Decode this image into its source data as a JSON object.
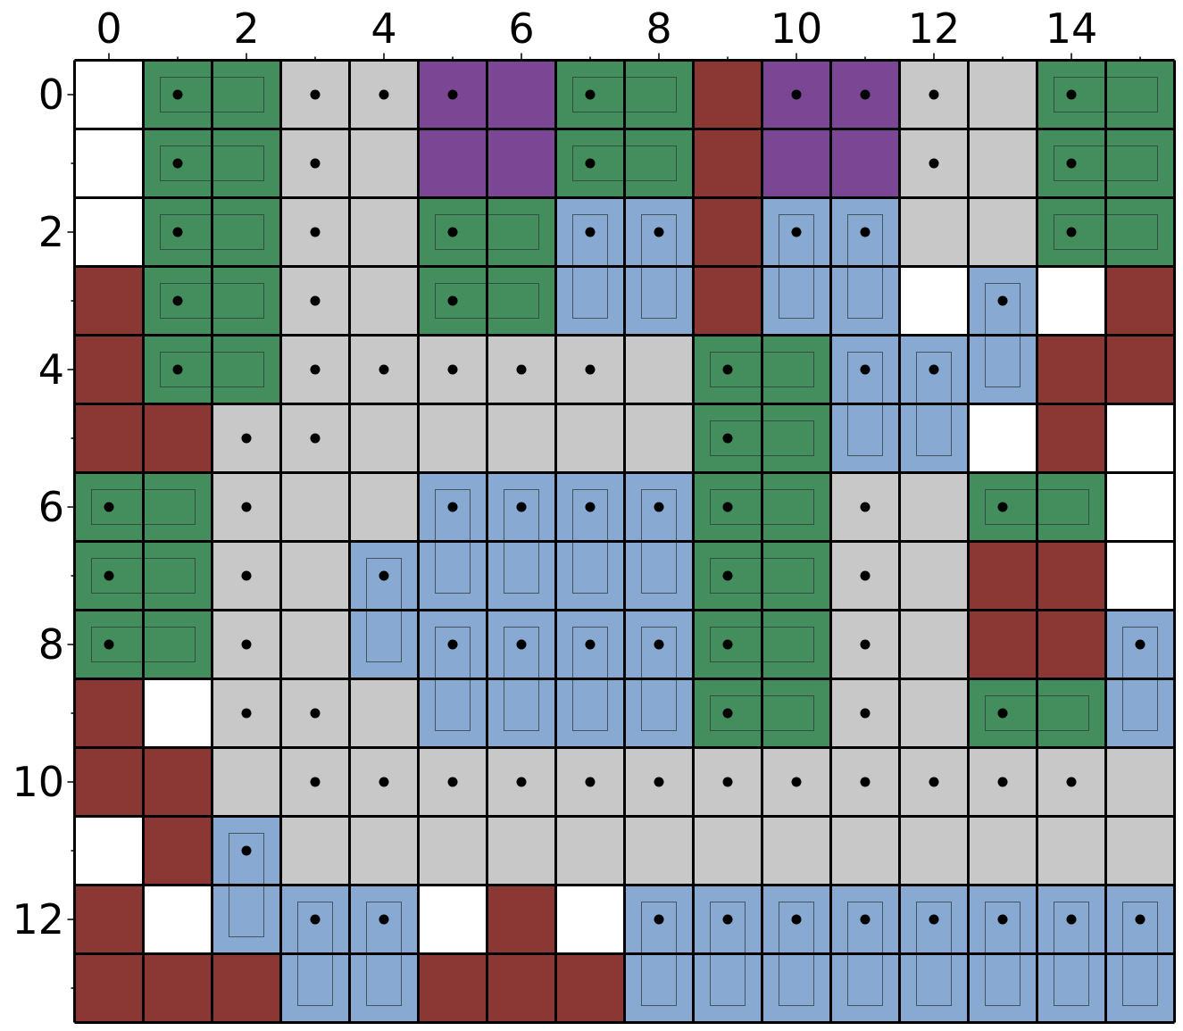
{
  "board": {
    "columns": 16,
    "rows": 14,
    "x_tick_labels": [
      "0",
      "2",
      "4",
      "6",
      "8",
      "10",
      "12",
      "14"
    ],
    "y_tick_labels": [
      "0",
      "2",
      "4",
      "6",
      "8",
      "10",
      "12"
    ],
    "cell_colors": {
      "W": "#ffffff",
      "G": "#c8c8c8",
      "R": "#8b3834",
      "P": "#7b4795",
      "N": "#448e5e",
      "B": "#87a9d2"
    },
    "cell_types": {
      "W": "empty",
      "G": "floor",
      "R": "wall",
      "P": "purple-block",
      "N": "green-block",
      "B": "blue-block"
    },
    "grid": [
      "WNNGGPPNNRPPGGNN",
      "WNNGGPPNNRPPGGNN",
      "WNNGGNNBBRBBGGNN",
      "RNNGGNNBBRBBWBWR",
      "RNNGGGGGGNNBBBRR",
      "RRGGGGGGGNNBBWRW",
      "NNGGGBBBBNNGGNNW",
      "NNGGBBBBBNNGGRRW",
      "NNGGBBBBBNNGGRRB",
      "RWGGGBBBBNNGGNNB",
      "RRGGGGGGGGGGGGGG",
      "WRBGGGGGGGGGGGGG",
      "RWBBBWRWBBBBBBBB",
      "RRRBBRRRBBBBBBBB"
    ],
    "pieces": [
      {
        "orientation": "horizontal",
        "color": "green",
        "cells": [
          [
            0,
            1
          ],
          [
            0,
            2
          ]
        ]
      },
      {
        "orientation": "horizontal",
        "color": "green",
        "cells": [
          [
            1,
            1
          ],
          [
            1,
            2
          ]
        ]
      },
      {
        "orientation": "horizontal",
        "color": "green",
        "cells": [
          [
            2,
            1
          ],
          [
            2,
            2
          ]
        ]
      },
      {
        "orientation": "horizontal",
        "color": "green",
        "cells": [
          [
            3,
            1
          ],
          [
            3,
            2
          ]
        ]
      },
      {
        "orientation": "horizontal",
        "color": "green",
        "cells": [
          [
            4,
            1
          ],
          [
            4,
            2
          ]
        ]
      },
      {
        "orientation": "horizontal",
        "color": "green",
        "cells": [
          [
            0,
            7
          ],
          [
            0,
            8
          ]
        ]
      },
      {
        "orientation": "horizontal",
        "color": "green",
        "cells": [
          [
            1,
            7
          ],
          [
            1,
            8
          ]
        ]
      },
      {
        "orientation": "horizontal",
        "color": "green",
        "cells": [
          [
            0,
            14
          ],
          [
            0,
            15
          ]
        ]
      },
      {
        "orientation": "horizontal",
        "color": "green",
        "cells": [
          [
            1,
            14
          ],
          [
            1,
            15
          ]
        ]
      },
      {
        "orientation": "horizontal",
        "color": "green",
        "cells": [
          [
            2,
            14
          ],
          [
            2,
            15
          ]
        ]
      },
      {
        "orientation": "horizontal",
        "color": "green",
        "cells": [
          [
            2,
            5
          ],
          [
            2,
            6
          ]
        ]
      },
      {
        "orientation": "horizontal",
        "color": "green",
        "cells": [
          [
            3,
            5
          ],
          [
            3,
            6
          ]
        ]
      },
      {
        "orientation": "horizontal",
        "color": "green",
        "cells": [
          [
            4,
            9
          ],
          [
            4,
            10
          ]
        ]
      },
      {
        "orientation": "horizontal",
        "color": "green",
        "cells": [
          [
            5,
            9
          ],
          [
            5,
            10
          ]
        ]
      },
      {
        "orientation": "horizontal",
        "color": "green",
        "cells": [
          [
            6,
            9
          ],
          [
            6,
            10
          ]
        ]
      },
      {
        "orientation": "horizontal",
        "color": "green",
        "cells": [
          [
            7,
            9
          ],
          [
            7,
            10
          ]
        ]
      },
      {
        "orientation": "horizontal",
        "color": "green",
        "cells": [
          [
            8,
            9
          ],
          [
            8,
            10
          ]
        ]
      },
      {
        "orientation": "horizontal",
        "color": "green",
        "cells": [
          [
            9,
            9
          ],
          [
            9,
            10
          ]
        ]
      },
      {
        "orientation": "horizontal",
        "color": "green",
        "cells": [
          [
            6,
            0
          ],
          [
            6,
            1
          ]
        ]
      },
      {
        "orientation": "horizontal",
        "color": "green",
        "cells": [
          [
            7,
            0
          ],
          [
            7,
            1
          ]
        ]
      },
      {
        "orientation": "horizontal",
        "color": "green",
        "cells": [
          [
            8,
            0
          ],
          [
            8,
            1
          ]
        ]
      },
      {
        "orientation": "horizontal",
        "color": "green",
        "cells": [
          [
            6,
            13
          ],
          [
            6,
            14
          ]
        ]
      },
      {
        "orientation": "horizontal",
        "color": "green",
        "cells": [
          [
            9,
            13
          ],
          [
            9,
            14
          ]
        ]
      },
      {
        "orientation": "vertical",
        "color": "blue",
        "cells": [
          [
            2,
            7
          ],
          [
            3,
            7
          ]
        ]
      },
      {
        "orientation": "vertical",
        "color": "blue",
        "cells": [
          [
            2,
            8
          ],
          [
            3,
            8
          ]
        ]
      },
      {
        "orientation": "vertical",
        "color": "blue",
        "cells": [
          [
            2,
            10
          ],
          [
            3,
            10
          ]
        ]
      },
      {
        "orientation": "vertical",
        "color": "blue",
        "cells": [
          [
            2,
            11
          ],
          [
            3,
            11
          ]
        ]
      },
      {
        "orientation": "vertical",
        "color": "blue",
        "cells": [
          [
            3,
            13
          ],
          [
            4,
            13
          ]
        ]
      },
      {
        "orientation": "vertical",
        "color": "blue",
        "cells": [
          [
            4,
            11
          ],
          [
            5,
            11
          ]
        ]
      },
      {
        "orientation": "vertical",
        "color": "blue",
        "cells": [
          [
            4,
            12
          ],
          [
            5,
            12
          ]
        ]
      },
      {
        "orientation": "vertical",
        "color": "blue",
        "cells": [
          [
            6,
            5
          ],
          [
            7,
            5
          ]
        ]
      },
      {
        "orientation": "vertical",
        "color": "blue",
        "cells": [
          [
            6,
            6
          ],
          [
            7,
            6
          ]
        ]
      },
      {
        "orientation": "vertical",
        "color": "blue",
        "cells": [
          [
            6,
            7
          ],
          [
            7,
            7
          ]
        ]
      },
      {
        "orientation": "vertical",
        "color": "blue",
        "cells": [
          [
            6,
            8
          ],
          [
            7,
            8
          ]
        ]
      },
      {
        "orientation": "vertical",
        "color": "blue",
        "cells": [
          [
            7,
            4
          ],
          [
            8,
            4
          ]
        ]
      },
      {
        "orientation": "vertical",
        "color": "blue",
        "cells": [
          [
            8,
            5
          ],
          [
            9,
            5
          ]
        ]
      },
      {
        "orientation": "vertical",
        "color": "blue",
        "cells": [
          [
            8,
            6
          ],
          [
            9,
            6
          ]
        ]
      },
      {
        "orientation": "vertical",
        "color": "blue",
        "cells": [
          [
            8,
            7
          ],
          [
            9,
            7
          ]
        ]
      },
      {
        "orientation": "vertical",
        "color": "blue",
        "cells": [
          [
            8,
            8
          ],
          [
            9,
            8
          ]
        ]
      },
      {
        "orientation": "vertical",
        "color": "blue",
        "cells": [
          [
            8,
            15
          ],
          [
            9,
            15
          ]
        ]
      },
      {
        "orientation": "vertical",
        "color": "blue",
        "cells": [
          [
            11,
            2
          ],
          [
            12,
            2
          ]
        ]
      },
      {
        "orientation": "vertical",
        "color": "blue",
        "cells": [
          [
            12,
            3
          ],
          [
            13,
            3
          ]
        ]
      },
      {
        "orientation": "vertical",
        "color": "blue",
        "cells": [
          [
            12,
            4
          ],
          [
            13,
            4
          ]
        ]
      },
      {
        "orientation": "vertical",
        "color": "blue",
        "cells": [
          [
            12,
            8
          ],
          [
            13,
            8
          ]
        ]
      },
      {
        "orientation": "vertical",
        "color": "blue",
        "cells": [
          [
            12,
            9
          ],
          [
            13,
            9
          ]
        ]
      },
      {
        "orientation": "vertical",
        "color": "blue",
        "cells": [
          [
            12,
            10
          ],
          [
            13,
            10
          ]
        ]
      },
      {
        "orientation": "vertical",
        "color": "blue",
        "cells": [
          [
            12,
            11
          ],
          [
            13,
            11
          ]
        ]
      },
      {
        "orientation": "vertical",
        "color": "blue",
        "cells": [
          [
            12,
            12
          ],
          [
            13,
            12
          ]
        ]
      },
      {
        "orientation": "vertical",
        "color": "blue",
        "cells": [
          [
            12,
            13
          ],
          [
            13,
            13
          ]
        ]
      },
      {
        "orientation": "vertical",
        "color": "blue",
        "cells": [
          [
            12,
            14
          ],
          [
            13,
            14
          ]
        ]
      },
      {
        "orientation": "vertical",
        "color": "blue",
        "cells": [
          [
            12,
            15
          ],
          [
            13,
            15
          ]
        ]
      }
    ],
    "dots": [
      [
        0,
        3
      ],
      [
        0,
        4
      ],
      [
        0,
        5
      ],
      [
        0,
        10
      ],
      [
        0,
        11
      ],
      [
        0,
        12
      ],
      [
        1,
        3
      ],
      [
        1,
        12
      ],
      [
        2,
        3
      ],
      [
        3,
        3
      ],
      [
        4,
        3
      ],
      [
        4,
        4
      ],
      [
        4,
        5
      ],
      [
        4,
        6
      ],
      [
        4,
        7
      ],
      [
        5,
        2
      ],
      [
        5,
        3
      ],
      [
        6,
        2
      ],
      [
        6,
        11
      ],
      [
        7,
        2
      ],
      [
        7,
        11
      ],
      [
        8,
        2
      ],
      [
        8,
        11
      ],
      [
        9,
        2
      ],
      [
        9,
        3
      ],
      [
        9,
        11
      ],
      [
        10,
        3
      ],
      [
        10,
        4
      ],
      [
        10,
        5
      ],
      [
        10,
        6
      ],
      [
        10,
        7
      ],
      [
        10,
        8
      ],
      [
        10,
        9
      ],
      [
        10,
        10
      ],
      [
        10,
        11
      ],
      [
        10,
        12
      ],
      [
        10,
        13
      ],
      [
        10,
        14
      ]
    ]
  }
}
